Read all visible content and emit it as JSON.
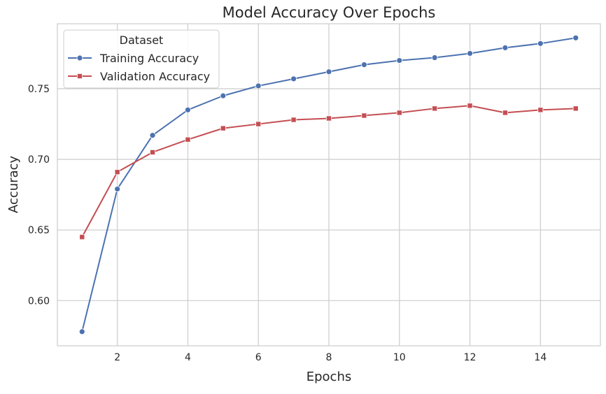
{
  "chart_data": {
    "type": "line",
    "title": "Model Accuracy Over Epochs",
    "xlabel": "Epochs",
    "ylabel": "Accuracy",
    "x": [
      1,
      2,
      3,
      4,
      5,
      6,
      7,
      8,
      9,
      10,
      11,
      12,
      13,
      14,
      15
    ],
    "xlim": [
      0.3,
      15.7
    ],
    "ylim": [
      0.568,
      0.796
    ],
    "xticks": [
      2,
      4,
      6,
      8,
      10,
      12,
      14
    ],
    "xtick_labels": [
      "2",
      "4",
      "6",
      "8",
      "10",
      "12",
      "14"
    ],
    "yticks": [
      0.6,
      0.65,
      0.7,
      0.75
    ],
    "ytick_labels": [
      "0.60",
      "0.65",
      "0.70",
      "0.75"
    ],
    "grid": true,
    "legend": {
      "title": "Dataset",
      "placement": "top-left"
    },
    "series": [
      {
        "name": "Training Accuracy",
        "color": "#4c72b0",
        "marker": "circle",
        "values": [
          0.578,
          0.679,
          0.717,
          0.735,
          0.745,
          0.752,
          0.757,
          0.762,
          0.767,
          0.77,
          0.772,
          0.775,
          0.779,
          0.782,
          0.786
        ]
      },
      {
        "name": "Validation Accuracy",
        "color": "#c44e52",
        "marker": "square",
        "values": [
          0.645,
          0.691,
          0.705,
          0.714,
          0.722,
          0.725,
          0.728,
          0.729,
          0.731,
          0.733,
          0.736,
          0.738,
          0.733,
          0.735,
          0.736
        ]
      }
    ]
  }
}
